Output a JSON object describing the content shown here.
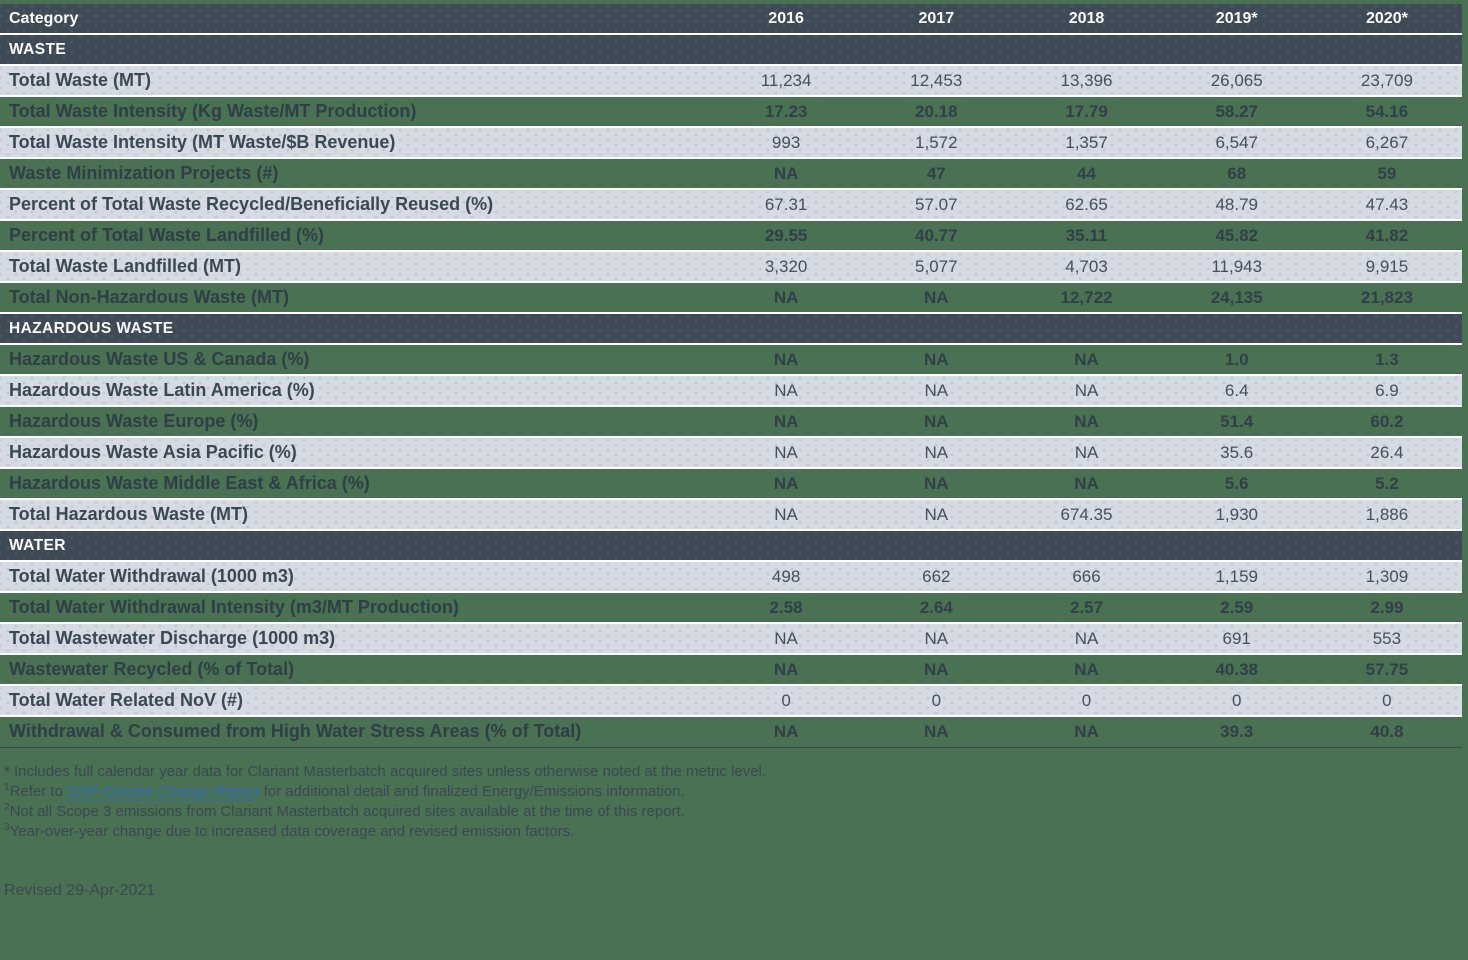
{
  "colors": {
    "page_background": "#4a7152",
    "header_band": "#3e4a55",
    "light_band": "#d5dae3",
    "row_separator": "#ffffff",
    "body_text": "#3a4854",
    "link_blue": "#2d6db6"
  },
  "chart_data": {
    "type": "table",
    "columns": [
      "Category",
      "2016",
      "2017",
      "2018",
      "2019*",
      "2020*"
    ],
    "sections": [
      {
        "title": "WASTE",
        "rows": [
          {
            "label": "Total Waste (MT)",
            "values": [
              "11,234",
              "12,453",
              "13,396",
              "26,065",
              "23,709"
            ],
            "variant": "light"
          },
          {
            "label": "Total Waste Intensity (Kg Waste/MT Production)",
            "values": [
              "17.23",
              "20.18",
              "17.79",
              "58.27",
              "54.16"
            ],
            "variant": "green"
          },
          {
            "label": "Total Waste Intensity (MT Waste/$B Revenue)",
            "values": [
              "993",
              "1,572",
              "1,357",
              "6,547",
              "6,267"
            ],
            "variant": "light"
          },
          {
            "label": "Waste Minimization Projects (#)",
            "values": [
              "NA",
              "47",
              "44",
              "68",
              "59"
            ],
            "variant": "green"
          },
          {
            "label": "Percent of Total Waste Recycled/Beneficially Reused (%)",
            "values": [
              "67.31",
              "57.07",
              "62.65",
              "48.79",
              "47.43"
            ],
            "variant": "light"
          },
          {
            "label": "Percent of Total Waste Landfilled (%)",
            "values": [
              "29.55",
              "40.77",
              "35.11",
              "45.82",
              "41.82"
            ],
            "variant": "green"
          },
          {
            "label": "Total Waste Landfilled (MT)",
            "values": [
              "3,320",
              "5,077",
              "4,703",
              "11,943",
              "9,915"
            ],
            "variant": "light"
          },
          {
            "label": "Total Non-Hazardous Waste (MT)",
            "values": [
              "NA",
              "NA",
              "12,722",
              "24,135",
              "21,823"
            ],
            "variant": "green"
          }
        ]
      },
      {
        "title": "HAZARDOUS WASTE",
        "rows": [
          {
            "label": "Hazardous Waste US & Canada (%)",
            "values": [
              "NA",
              "NA",
              "NA",
              "1.0",
              "1.3"
            ],
            "variant": "green"
          },
          {
            "label": "Hazardous Waste Latin America (%)",
            "values": [
              "NA",
              "NA",
              "NA",
              "6.4",
              "6.9"
            ],
            "variant": "light"
          },
          {
            "label": "Hazardous Waste Europe (%)",
            "values": [
              "NA",
              "NA",
              "NA",
              "51.4",
              "60.2"
            ],
            "variant": "green"
          },
          {
            "label": "Hazardous Waste Asia Pacific (%)",
            "values": [
              "NA",
              "NA",
              "NA",
              "35.6",
              "26.4"
            ],
            "variant": "light"
          },
          {
            "label": "Hazardous Waste Middle East & Africa (%)",
            "values": [
              "NA",
              "NA",
              "NA",
              "5.6",
              "5.2"
            ],
            "variant": "green"
          },
          {
            "label": "Total Hazardous Waste (MT)",
            "values": [
              "NA",
              "NA",
              "674.35",
              "1,930",
              "1,886"
            ],
            "variant": "light"
          }
        ]
      },
      {
        "title": "WATER",
        "rows": [
          {
            "label": "Total Water Withdrawal (1000 m3)",
            "values": [
              "498",
              "662",
              "666",
              "1,159",
              "1,309"
            ],
            "variant": "light"
          },
          {
            "label": "Total Water Withdrawal Intensity (m3/MT Production)",
            "values": [
              "2.58",
              "2.64",
              "2.57",
              "2.59",
              "2.99"
            ],
            "variant": "green"
          },
          {
            "label": "Total Wastewater Discharge (1000 m3)",
            "values": [
              "NA",
              "NA",
              "NA",
              "691",
              "553"
            ],
            "variant": "light"
          },
          {
            "label": "Wastewater Recycled (% of Total)",
            "values": [
              "NA",
              "NA",
              "NA",
              "40.38",
              "57.75"
            ],
            "variant": "green"
          },
          {
            "label": "Total Water Related NoV (#)",
            "values": [
              "0",
              "0",
              "0",
              "0",
              "0"
            ],
            "variant": "light"
          },
          {
            "label": "Withdrawal & Consumed from High Water Stress Areas (% of Total)",
            "values": [
              "NA",
              "NA",
              "NA",
              "39.3",
              "40.8"
            ],
            "variant": "green"
          }
        ]
      }
    ]
  },
  "footnotes": {
    "asterisk": "* Includes full calendar year data for Clariant Masterbatch acquired sites unless otherwise noted at the metric level.",
    "note1_sup": "1",
    "note1_prefix": "Refer to",
    "note1_link": "CDP Climate Change Report",
    "note1_suffix": "for additional detail and finalized Energy/Emissions information.",
    "note2_sup": "2",
    "note2": "Not all Scope 3 emissions from Clariant Masterbatch acquired sites available at the time of this report.",
    "note3_sup": "3",
    "note3": "Year-over-year change due to increased data coverage and revised emission factors.",
    "revised": "Revised 29-Apr-2021"
  }
}
